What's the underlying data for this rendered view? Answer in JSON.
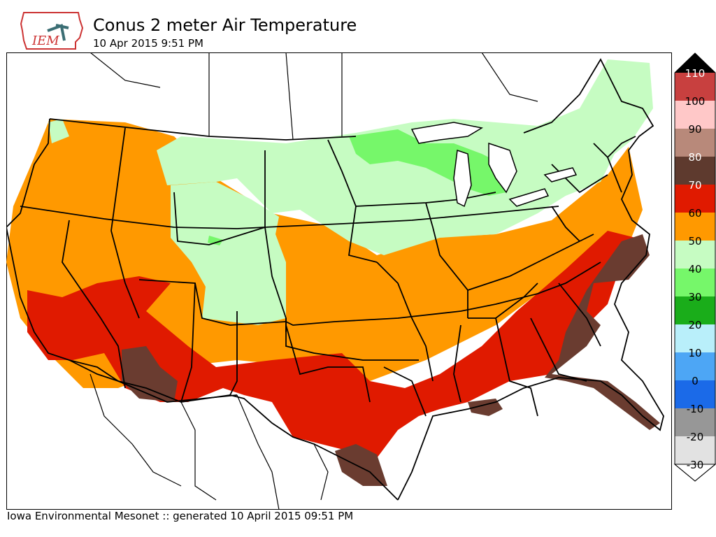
{
  "header": {
    "logo_text": "IEM",
    "title": "Conus 2 meter Air Temperature",
    "subtitle": "10 Apr 2015 9:51 PM"
  },
  "footer": {
    "text": "Iowa Environmental Mesonet :: generated 10 April 2015 09:51 PM"
  },
  "colorbar": {
    "levels": [
      {
        "label": "110",
        "color": "#c8403f"
      },
      {
        "label": "100",
        "color": "#ffc8c8"
      },
      {
        "label": "90",
        "color": "#b8897a"
      },
      {
        "label": "80",
        "color": "#5e3a2e"
      },
      {
        "label": "70",
        "color": "#e01a00"
      },
      {
        "label": "60",
        "color": "#ff9900"
      },
      {
        "label": "50",
        "color": "#c6fcc2"
      },
      {
        "label": "40",
        "color": "#76f76a"
      },
      {
        "label": "30",
        "color": "#1aad1a"
      },
      {
        "label": "20",
        "color": "#b9effa"
      },
      {
        "label": "10",
        "color": "#4da6f5"
      },
      {
        "label": "0",
        "color": "#1b6ae8"
      },
      {
        "label": "-10",
        "color": "#979797"
      },
      {
        "label": "-20",
        "color": "#e2e2e2"
      }
    ],
    "bottom_label": "-30",
    "top_color": "#000000"
  },
  "colors": {
    "very_warm": "#6a3c30",
    "warm": "#e01a00",
    "mild": "#ff9900",
    "cool": "#c6fcc2",
    "cooler": "#76f76a"
  }
}
